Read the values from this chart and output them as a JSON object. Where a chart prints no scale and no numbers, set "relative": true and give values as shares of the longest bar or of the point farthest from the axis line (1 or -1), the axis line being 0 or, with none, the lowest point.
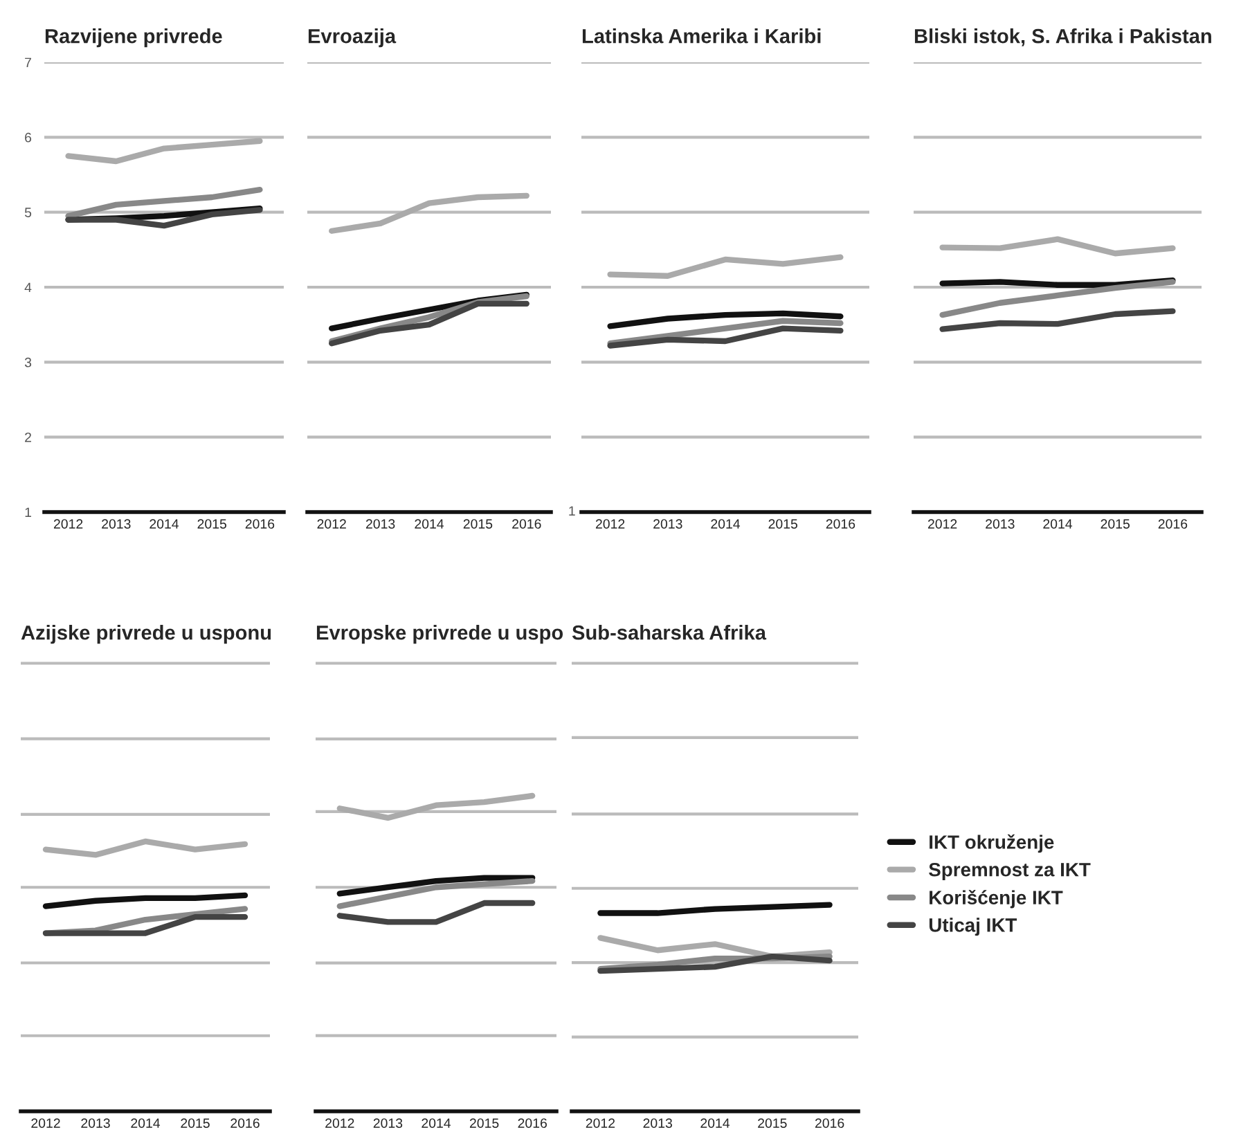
{
  "chart_data": [
    {
      "type": "line",
      "title": "Razvijene privrede",
      "categories": [
        "2012",
        "2013",
        "2014",
        "2015",
        "2016"
      ],
      "ylim": [
        1,
        7
      ],
      "yticks": [
        1,
        2,
        3,
        4,
        5,
        6,
        7
      ],
      "grid": "y",
      "series": [
        {
          "color": "#111111",
          "values": [
            4.9,
            4.92,
            4.95,
            5.0,
            5.05
          ]
        },
        {
          "color": "#aaaaaa",
          "values": [
            5.75,
            5.68,
            5.85,
            5.9,
            5.95
          ]
        },
        {
          "color": "#888888",
          "values": [
            4.95,
            5.1,
            5.15,
            5.2,
            5.3
          ]
        },
        {
          "color": "#444444",
          "values": [
            4.9,
            4.9,
            4.82,
            4.97,
            5.03
          ]
        }
      ]
    },
    {
      "type": "line",
      "title": "Evroazija",
      "categories": [
        "2012",
        "2013",
        "2014",
        "2015",
        "2016"
      ],
      "ylim": [
        1,
        7
      ],
      "yticks": [
        1,
        2,
        3,
        4,
        5,
        6,
        7
      ],
      "tick_labels": "x",
      "grid": "y",
      "series": [
        {
          "color": "#111111",
          "values": [
            3.45,
            3.58,
            3.7,
            3.82,
            3.9
          ]
        },
        {
          "color": "#aaaaaa",
          "values": [
            4.75,
            4.85,
            5.12,
            5.2,
            5.22
          ]
        },
        {
          "color": "#888888",
          "values": [
            3.28,
            3.45,
            3.6,
            3.8,
            3.88
          ]
        },
        {
          "color": "#444444",
          "values": [
            3.25,
            3.42,
            3.5,
            3.78,
            3.78
          ]
        }
      ]
    },
    {
      "type": "line",
      "title": "Latinska Amerika i Karibi",
      "categories": [
        "2012",
        "2013",
        "2014",
        "2015",
        "2016"
      ],
      "ylim": [
        1,
        7
      ],
      "yticks": [
        1,
        2,
        3,
        4,
        5,
        6,
        7
      ],
      "tick_labels": "x",
      "annotations": [
        "1"
      ],
      "grid": "y",
      "series": [
        {
          "color": "#111111",
          "values": [
            3.48,
            3.58,
            3.63,
            3.65,
            3.61
          ]
        },
        {
          "color": "#aaaaaa",
          "values": [
            4.17,
            4.15,
            4.37,
            4.31,
            4.4
          ]
        },
        {
          "color": "#888888",
          "values": [
            3.25,
            3.35,
            3.45,
            3.55,
            3.52
          ]
        },
        {
          "color": "#444444",
          "values": [
            3.22,
            3.3,
            3.28,
            3.45,
            3.42
          ]
        }
      ]
    },
    {
      "type": "line",
      "title": "Bliski istok, S. Afrika i Pakistan",
      "categories": [
        "2012",
        "2013",
        "2014",
        "2015",
        "2016"
      ],
      "ylim": [
        1,
        7
      ],
      "yticks": [
        1,
        2,
        3,
        4,
        5,
        6,
        7
      ],
      "tick_labels": "x",
      "grid": "y",
      "series": [
        {
          "color": "#111111",
          "values": [
            4.05,
            4.07,
            4.03,
            4.03,
            4.09
          ]
        },
        {
          "color": "#aaaaaa",
          "values": [
            4.53,
            4.52,
            4.64,
            4.45,
            4.52
          ]
        },
        {
          "color": "#888888",
          "values": [
            3.63,
            3.79,
            3.89,
            3.99,
            4.07
          ]
        },
        {
          "color": "#444444",
          "values": [
            3.44,
            3.52,
            3.51,
            3.64,
            3.68
          ]
        }
      ]
    },
    {
      "type": "line",
      "title": "Azijske privrede u usponu",
      "categories": [
        "2012",
        "2013",
        "2014",
        "2015",
        "2016"
      ],
      "relative": true,
      "ref_lines": [
        {
          "axis": "y",
          "value": 0.28,
          "color": "#bbbbbb"
        },
        {
          "axis": "y",
          "value": 0.55,
          "color": "#bbbbbb"
        },
        {
          "axis": "y",
          "value": 0.83,
          "color": "#bbbbbb"
        },
        {
          "axis": "y",
          "value": 1.1,
          "color": "#bbbbbb"
        },
        {
          "axis": "y",
          "value": 1.38,
          "color": "#bbbbbb"
        },
        {
          "axis": "y",
          "value": 1.66,
          "color": "#bbbbbb"
        }
      ],
      "series": [
        {
          "color": "#111111",
          "values": [
            0.76,
            0.78,
            0.79,
            0.79,
            0.8
          ]
        },
        {
          "color": "#aaaaaa",
          "values": [
            0.97,
            0.95,
            1,
            0.97,
            0.99
          ]
        },
        {
          "color": "#888888",
          "values": [
            0.66,
            0.67,
            0.71,
            0.73,
            0.75
          ]
        },
        {
          "color": "#444444",
          "values": [
            0.66,
            0.66,
            0.66,
            0.72,
            0.72
          ]
        }
      ]
    },
    {
      "type": "line",
      "title": "Evropske privrede u uspo",
      "categories": [
        "2012",
        "2013",
        "2014",
        "2015",
        "2016"
      ],
      "relative": true,
      "ref_lines": [
        {
          "axis": "y",
          "value": 0.24,
          "color": "#bbbbbb"
        },
        {
          "axis": "y",
          "value": 0.47,
          "color": "#bbbbbb"
        },
        {
          "axis": "y",
          "value": 0.71,
          "color": "#bbbbbb"
        },
        {
          "axis": "y",
          "value": 0.95,
          "color": "#bbbbbb"
        },
        {
          "axis": "y",
          "value": 1.18,
          "color": "#bbbbbb"
        },
        {
          "axis": "y",
          "value": 1.42,
          "color": "#bbbbbb"
        }
      ],
      "series": [
        {
          "color": "#111111",
          "values": [
            0.69,
            0.71,
            0.73,
            0.74,
            0.74
          ]
        },
        {
          "color": "#aaaaaa",
          "values": [
            0.96,
            0.93,
            0.97,
            0.98,
            1
          ]
        },
        {
          "color": "#888888",
          "values": [
            0.65,
            0.68,
            0.71,
            0.72,
            0.73
          ]
        },
        {
          "color": "#444444",
          "values": [
            0.62,
            0.6,
            0.6,
            0.66,
            0.66
          ]
        }
      ]
    },
    {
      "type": "line",
      "title": "Sub-saharska Afrika",
      "categories": [
        "2012",
        "2013",
        "2014",
        "2015",
        "2016"
      ],
      "relative": true,
      "ref_lines": [
        {
          "axis": "y",
          "value": 0.36,
          "color": "#bbbbbb"
        },
        {
          "axis": "y",
          "value": 0.72,
          "color": "#bbbbbb"
        },
        {
          "axis": "y",
          "value": 1.08,
          "color": "#bbbbbb"
        },
        {
          "axis": "y",
          "value": 1.44,
          "color": "#bbbbbb"
        },
        {
          "axis": "y",
          "value": 1.81,
          "color": "#bbbbbb"
        },
        {
          "axis": "y",
          "value": 2.17,
          "color": "#bbbbbb"
        }
      ],
      "legend": "right",
      "series": [
        {
          "name": "IKT okruženje",
          "color": "#111111",
          "values": [
            0.96,
            0.96,
            0.98,
            0.99,
            1
          ]
        },
        {
          "name": "Spremnost za IKT",
          "color": "#aaaaaa",
          "values": [
            0.84,
            0.78,
            0.81,
            0.75,
            0.77
          ]
        },
        {
          "name": "Korišćenje IKT",
          "color": "#888888",
          "values": [
            0.69,
            0.71,
            0.74,
            0.74,
            0.75
          ]
        },
        {
          "name": "Uticaj IKT",
          "color": "#444444",
          "values": [
            0.68,
            0.69,
            0.7,
            0.75,
            0.73
          ]
        }
      ]
    }
  ]
}
